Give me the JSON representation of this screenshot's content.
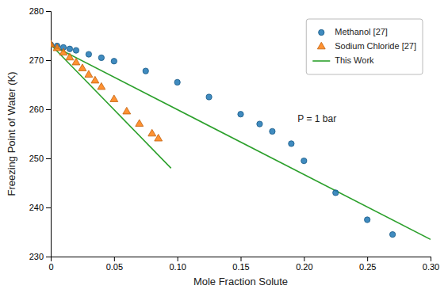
{
  "chart_data": {
    "type": "scatter",
    "xlabel": "Mole Fraction Solute",
    "ylabel": "Freezing Point of Water (K)",
    "series": [
      {
        "name": "Methanol [27]",
        "type": "scatter",
        "marker": "circle",
        "x": [
          0.0,
          0.005,
          0.01,
          0.015,
          0.02,
          0.03,
          0.04,
          0.05,
          0.075,
          0.1,
          0.125,
          0.15,
          0.165,
          0.175,
          0.19,
          0.2,
          0.225,
          0.25,
          0.27
        ],
        "values": [
          273.15,
          272.9,
          272.6,
          272.3,
          272.0,
          271.2,
          270.5,
          269.8,
          267.8,
          265.5,
          262.5,
          259.0,
          257.0,
          255.5,
          253.0,
          249.5,
          243.0,
          237.5,
          234.5
        ]
      },
      {
        "name": "Sodium Chloride [27]",
        "type": "scatter",
        "marker": "triangle",
        "x": [
          0.0,
          0.005,
          0.01,
          0.015,
          0.02,
          0.025,
          0.03,
          0.035,
          0.04,
          0.05,
          0.06,
          0.07,
          0.08,
          0.085
        ],
        "values": [
          273.15,
          272.4,
          271.5,
          270.5,
          269.5,
          268.3,
          267.0,
          265.8,
          264.5,
          262.0,
          259.5,
          257.0,
          255.0,
          254.0
        ]
      },
      {
        "name": "This Work",
        "type": "line",
        "line_style": "solid",
        "x": [
          0.0,
          0.3,
          null,
          0.0,
          0.095
        ],
        "values": [
          273.15,
          233.5,
          null,
          273.15,
          248.0
        ]
      }
    ],
    "xlim": [
      0.0,
      0.3
    ],
    "ylim": [
      230,
      280
    ],
    "xticks": [
      0,
      0.05,
      {
        "value": 0.1,
        "label": "0.10"
      },
      0.15,
      {
        "value": 0.2,
        "label": "0.20"
      },
      0.25,
      {
        "value": 0.3,
        "label": "0.30"
      }
    ],
    "yticks": [
      230,
      240,
      250,
      260,
      270,
      280
    ],
    "annotations": [
      {
        "text": "P = 1 bar",
        "x": 0.195,
        "y": 258
      }
    ],
    "legend": "upper right",
    "grid": false
  }
}
